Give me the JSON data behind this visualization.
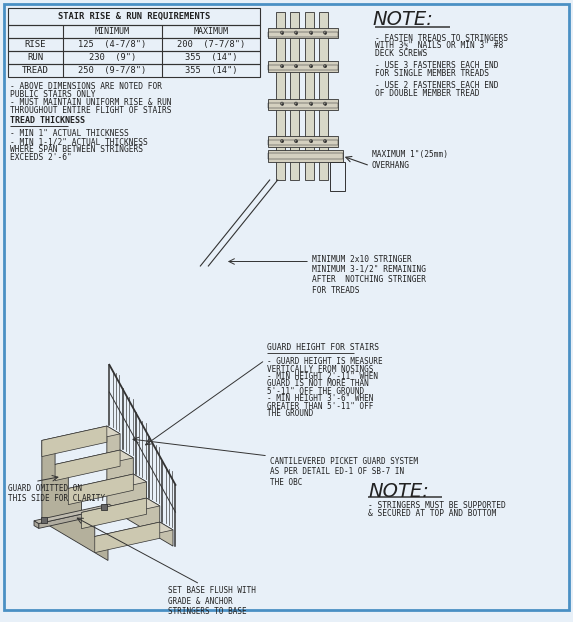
{
  "bg_color": "#e8f0f8",
  "border_color": "#4a90c4",
  "line_color": "#333333",
  "text_color": "#222222",
  "title": "STAIR RISE & RUN REQUIREMENTS",
  "table": {
    "headers": [
      "",
      "MINIMUM",
      "MAXIMUM"
    ],
    "rows": [
      [
        "RISE",
        "125  (4-7/8\")",
        "200  (7-7/8\")"
      ],
      [
        "RUN",
        "230  (9\")",
        "355  (14\")"
      ],
      [
        "TREAD",
        "250  (9-7/8\")",
        "355  (14\")"
      ]
    ]
  },
  "notes_left": [
    "- ABOVE DIMENSIONS ARE NOTED FOR",
    "PUBLIC STAIRS ONLY",
    "- MUST MAINTAIN UNIFORM RISE & RUN",
    "THROUGHOUT ENTIRE FLIGHT OF STAIRS"
  ],
  "tread_thickness_title": "TREAD THICKNESS",
  "tread_thickness_notes": [
    "- MIN 1\" ACTUAL THICKNESS",
    "- MIN 1-1/2\" ACTUAL THICKNESS",
    "WHERE SPAN BETWEEN STRINGERS",
    "EXCEEDS 2'-6\""
  ],
  "note_title": "NOTE:",
  "note_right_lines": [
    "- FASTEN TREADS TO STRINGERS",
    "WITH 3½\" NAILS OR MIN 3\" #8",
    "DECK SCREWS",
    "",
    "- USE 3 FASTENERS EACH END",
    "FOR SINGLE MEMBER TREADS",
    "",
    "- USE 2 FASTENERS EACH END",
    "OF DOUBLE MEMBER TREAD"
  ],
  "overhang_label": "MAXIMUM 1\"(25mm)\nOVERHANG",
  "stringer_label": "MINIMUM 2x10 STRINGER\nMINIMUM 3-1/2\" REMAINING\nAFTER  NOTCHING STRINGER\nFOR TREADS",
  "guard_height_title": "GUARD HEIGHT FOR STAIRS",
  "guard_height_lines": [
    "- GUARD HEIGHT IS MEASURE",
    "VERTICALLY FROM NOSINGS",
    "- MIN HEIGHT 2'-11\" WHEN",
    "GUARD IS NOT MORE THAN",
    "5'-11\" OFF THE GROUND",
    "- MIN HEIGHT 3'-6\" WHEN",
    "GREATER THAN 5'-11\" OFF",
    "THE GROUND"
  ],
  "cantilever_label": "CANTILEVERED PICKET GUARD SYSTEM\nAS PER DETAIL ED-1 OF SB-7 IN\nTHE OBC",
  "note2_title": "NOTE:",
  "note2_lines": [
    "- STRINGERS MUST BE SUPPORTED",
    "& SECURED AT TOP AND BOTTOM"
  ],
  "guard_omit_label": "GUARD OMITTED ON\nTHIS SIDE FOR CLARITY",
  "base_label": "SET BASE FLUSH WITH\nGRADE & ANCHOR\nSTRINGERS TO BASE"
}
